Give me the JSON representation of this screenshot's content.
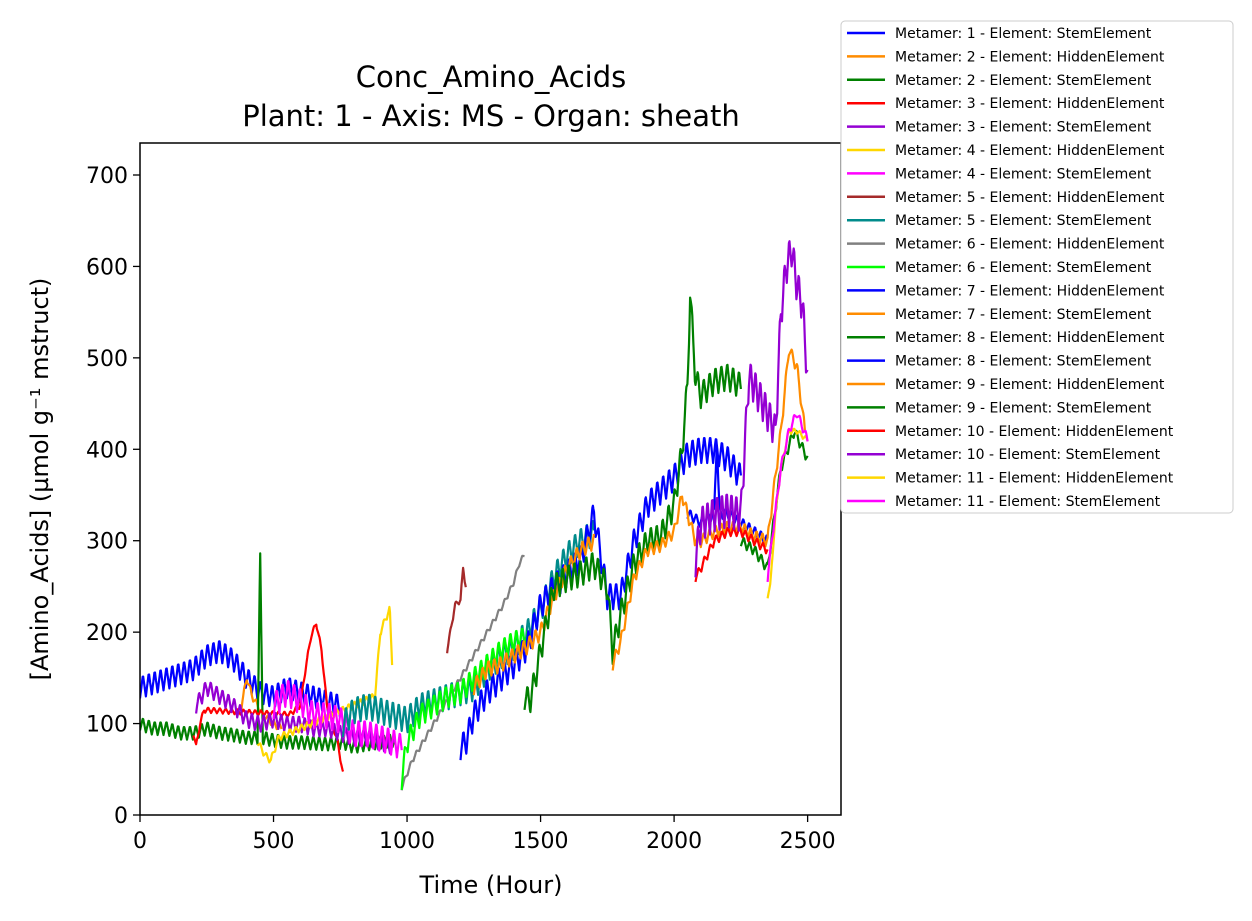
{
  "chart_data": {
    "type": "line",
    "title": "Conc_Amino_Acids",
    "subtitle": "Plant: 1 - Axis: MS - Organ: sheath",
    "xlabel": "Time (Hour)",
    "ylabel": "[Amino_Acids] (µmol g⁻¹ mstruct)",
    "xlim": [
      0,
      2625
    ],
    "ylim": [
      0,
      735
    ],
    "xticks": [
      "0",
      "500",
      "1000",
      "1500",
      "2000",
      "2500"
    ],
    "yticks": [
      "0",
      "100",
      "200",
      "300",
      "400",
      "500",
      "600",
      "700"
    ],
    "grid": false,
    "legend_position": "outside-top-right",
    "series": [
      {
        "name": "Metamer: 1 - Element: StemElement",
        "color": "#0000ff",
        "x": [
          0,
          50,
          100,
          150,
          200,
          250,
          300,
          350,
          400,
          450,
          500,
          550,
          600,
          650,
          700,
          750
        ],
        "y": [
          140,
          145,
          150,
          155,
          160,
          175,
          180,
          170,
          150,
          135,
          130,
          140,
          135,
          130,
          125,
          120
        ],
        "amp": 25,
        "period": 22
      },
      {
        "name": "Metamer: 2 - Element: HiddenElement",
        "color": "#ff8c00",
        "x": [
          380,
          400,
          420,
          460,
          500,
          530
        ],
        "y": [
          120,
          150,
          130,
          110,
          100,
          95
        ],
        "amp": 8,
        "period": 22
      },
      {
        "name": "Metamer: 2 - Element: StemElement",
        "color": "#008000",
        "x": [
          0,
          50,
          100,
          150,
          200,
          250,
          300,
          350,
          400,
          440,
          450,
          460,
          500,
          550,
          600,
          700,
          760,
          800,
          850,
          900,
          950
        ],
        "y": [
          100,
          95,
          95,
          90,
          90,
          95,
          90,
          88,
          85,
          85,
          280,
          85,
          82,
          80,
          80,
          78,
          80,
          75,
          78,
          80,
          82
        ],
        "amp": 15,
        "period": 22
      },
      {
        "name": "Metamer: 3 - Element: HiddenElement",
        "color": "#ff0000",
        "x": [
          200,
          210,
          225,
          240,
          560,
          600,
          620,
          640,
          660,
          680,
          700,
          740,
          760
        ],
        "y": [
          90,
          75,
          100,
          115,
          110,
          120,
          160,
          195,
          210,
          180,
          120,
          80,
          45
        ],
        "amp": 6,
        "period": 22
      },
      {
        "name": "Metamer: 3 - Element: StemElement",
        "color": "#9400d3",
        "x": [
          210,
          250,
          300,
          350,
          400,
          450,
          500,
          550,
          600,
          650,
          700,
          750,
          800,
          850,
          900,
          950
        ],
        "y": [
          120,
          140,
          130,
          120,
          105,
          100,
          105,
          100,
          100,
          95,
          95,
          90,
          85,
          85,
          80,
          75
        ],
        "amp": 18,
        "period": 22
      },
      {
        "name": "Metamer: 4 - Element: HiddenElement",
        "color": "#ffd700",
        "x": [
          440,
          470,
          490,
          520,
          880,
          900,
          920,
          935,
          945
        ],
        "y": [
          80,
          65,
          60,
          85,
          130,
          200,
          215,
          225,
          160
        ],
        "amp": 8,
        "period": 22
      },
      {
        "name": "Metamer: 4 - Element: StemElement",
        "color": "#ff00ff",
        "x": [
          500,
          550,
          600,
          650,
          700,
          750,
          800,
          850,
          900,
          950,
          980
        ],
        "y": [
          120,
          135,
          125,
          110,
          110,
          105,
          90,
          90,
          85,
          80,
          75
        ],
        "amp": 30,
        "period": 22
      },
      {
        "name": "Metamer: 5 - Element: HiddenElement",
        "color": "#a52a2a",
        "x": [
          1150,
          1180,
          1200,
          1210,
          1220
        ],
        "y": [
          180,
          230,
          235,
          270,
          250
        ],
        "amp": 6,
        "period": 22
      },
      {
        "name": "Metamer: 5 - Element: StemElement",
        "color": "#008b8b",
        "x": [
          760,
          800,
          850,
          900,
          950,
          1000,
          1050,
          1100,
          1150,
          1200,
          1250,
          1300,
          1350,
          1400,
          1450,
          1500,
          1550,
          1600,
          1650,
          1700
        ],
        "y": [
          100,
          115,
          120,
          115,
          110,
          105,
          120,
          125,
          130,
          135,
          140,
          160,
          175,
          185,
          200,
          225,
          260,
          285,
          300,
          310
        ],
        "amp": 30,
        "period": 22
      },
      {
        "name": "Metamer: 6 - Element: HiddenElement",
        "color": "#808080",
        "x": [
          980,
          1000,
          1020,
          1360,
          1400,
          1420,
          1440
        ],
        "y": [
          30,
          45,
          60,
          230,
          255,
          275,
          285
        ],
        "amp": 6,
        "period": 22
      },
      {
        "name": "Metamer: 6 - Element: StemElement",
        "color": "#00ff00",
        "x": [
          980,
          1000,
          1050,
          1100,
          1150,
          1200,
          1250,
          1300,
          1350,
          1400,
          1450
        ],
        "y": [
          40,
          80,
          110,
          120,
          130,
          135,
          150,
          165,
          180,
          190,
          195
        ],
        "amp": 25,
        "period": 22
      },
      {
        "name": "Metamer: 7 - Element: HiddenElement",
        "color": "#0000ff",
        "x": [
          1200,
          1220,
          1250,
          1300,
          1350,
          1400,
          1450,
          1500,
          1550,
          1600,
          1650,
          1700,
          1750,
          1800,
          1850,
          1900,
          1950,
          2000,
          2050,
          2100,
          2150,
          2200,
          2250
        ],
        "y": [
          75,
          80,
          110,
          135,
          150,
          165,
          185,
          230,
          250,
          265,
          280,
          330,
          240,
          240,
          300,
          340,
          355,
          370,
          395,
          400,
          400,
          390,
          370
        ],
        "amp": 30,
        "period": 22
      },
      {
        "name": "Metamer: 7 - Element: StemElement",
        "color": "#ff8c00",
        "x": [
          1250,
          1300,
          1350,
          1400,
          1450,
          1500,
          1550,
          1600,
          1650,
          1700
        ],
        "y": [
          140,
          160,
          165,
          175,
          185,
          200,
          240,
          270,
          290,
          300
        ],
        "amp": 18,
        "period": 22
      },
      {
        "name": "Metamer: 8 - Element: HiddenElement",
        "color": "#008000",
        "x": [
          1440,
          1460,
          1480,
          1500,
          1550,
          1600,
          1650,
          1700,
          1750,
          1770,
          1800,
          1850,
          1900,
          1950,
          2000,
          2030,
          2050,
          2060,
          2080,
          2100,
          2150,
          2200,
          2250
        ],
        "y": [
          130,
          125,
          150,
          180,
          250,
          260,
          265,
          275,
          250,
          180,
          220,
          275,
          300,
          305,
          340,
          400,
          470,
          570,
          480,
          460,
          475,
          480,
          470
        ],
        "amp": 30,
        "period": 22
      },
      {
        "name": "Metamer: 8 - Element: StemElement",
        "color": "#0000ff",
        "x": [
          2050,
          2100,
          2150,
          2160,
          2170,
          2200,
          2250,
          2300,
          2350
        ],
        "y": [
          330,
          320,
          330,
          410,
          330,
          330,
          320,
          310,
          300
        ],
        "amp": 12,
        "period": 22
      },
      {
        "name": "Metamer: 9 - Element: HiddenElement",
        "color": "#ff8c00",
        "x": [
          1770,
          1800,
          1850,
          1900,
          1950,
          2000,
          2030,
          2050,
          2080,
          2100,
          2150,
          2200,
          2250,
          2300,
          2350,
          2400,
          2430,
          2460,
          2490
        ],
        "y": [
          165,
          190,
          260,
          290,
          295,
          310,
          350,
          330,
          300,
          300,
          310,
          315,
          315,
          305,
          300,
          420,
          510,
          490,
          420
        ],
        "amp": 14,
        "period": 22
      },
      {
        "name": "Metamer: 9 - Element: StemElement",
        "color": "#008000",
        "x": [
          2250,
          2300,
          2350,
          2400,
          2450,
          2500
        ],
        "y": [
          300,
          290,
          270,
          380,
          420,
          390
        ],
        "amp": 12,
        "period": 22
      },
      {
        "name": "Metamer: 10 - Element: HiddenElement",
        "color": "#ff0000",
        "x": [
          2080,
          2100,
          2150,
          2200,
          2250,
          2300,
          2350
        ],
        "y": [
          260,
          270,
          300,
          310,
          310,
          300,
          290
        ],
        "amp": 10,
        "period": 22
      },
      {
        "name": "Metamer: 10 - Element: StemElement",
        "color": "#9400d3",
        "x": [
          2080,
          2100,
          2150,
          2200,
          2250,
          2280,
          2300,
          2350,
          2380,
          2400,
          2420,
          2440,
          2460,
          2480,
          2500
        ],
        "y": [
          280,
          320,
          330,
          335,
          330,
          480,
          470,
          440,
          420,
          550,
          600,
          620,
          580,
          560,
          480
        ],
        "amp": 40,
        "period": 18
      },
      {
        "name": "Metamer: 11 - Element: HiddenElement",
        "color": "#ffd700",
        "x": [
          2350,
          2360,
          2380,
          2400,
          2430,
          2460,
          2500
        ],
        "y": [
          240,
          250,
          330,
          380,
          420,
          420,
          410
        ],
        "amp": 6,
        "period": 22
      },
      {
        "name": "Metamer: 11 - Element: StemElement",
        "color": "#ff00ff",
        "x": [
          2350,
          2370,
          2400,
          2430,
          2460,
          2500
        ],
        "y": [
          260,
          310,
          380,
          420,
          440,
          410
        ],
        "amp": 10,
        "period": 22
      }
    ]
  }
}
